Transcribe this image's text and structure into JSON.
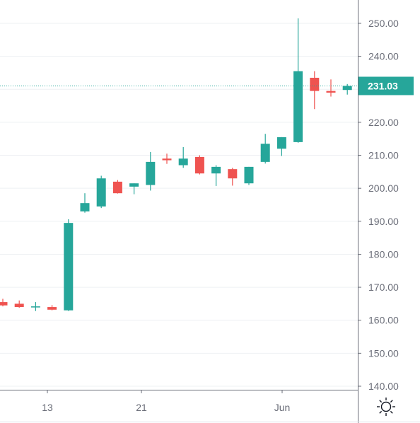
{
  "colors": {
    "up": "#26a69a",
    "down": "#ef5350",
    "last_price": "#26a69a",
    "axis_line": "#6a6d78",
    "axis_text": "#6a6d78",
    "grid": "#eef0f3",
    "background": "#ffffff"
  },
  "settings_icon": "sun-settings-icon",
  "chart_data": {
    "type": "candlestick",
    "title": "",
    "xlabel": "",
    "ylabel": "",
    "ylim": [
      138.5,
      257
    ],
    "grid": true,
    "y_ticks": [
      "250.00",
      "240.00",
      "230.00",
      "220.00",
      "210.00",
      "200.00",
      "190.00",
      "180.00",
      "170.00",
      "160.00",
      "150.00",
      "140.00"
    ],
    "x_ticks": [
      "13",
      "21",
      "Jun"
    ],
    "last_price": 231.03,
    "last_price_label": "231.03",
    "candles": [
      {
        "o": 165.5,
        "h": 166.5,
        "l": 164.2,
        "c": 164.5
      },
      {
        "o": 165.0,
        "h": 166.0,
        "l": 163.8,
        "c": 164.0
      },
      {
        "o": 164.0,
        "h": 165.5,
        "l": 162.8,
        "c": 164.2
      },
      {
        "o": 164.0,
        "h": 164.6,
        "l": 163.0,
        "c": 163.2
      },
      {
        "o": 163.0,
        "h": 190.6,
        "l": 162.8,
        "c": 189.5
      },
      {
        "o": 193.0,
        "h": 198.5,
        "l": 192.6,
        "c": 195.5
      },
      {
        "o": 194.5,
        "h": 203.8,
        "l": 194.0,
        "c": 203.0
      },
      {
        "o": 202.0,
        "h": 202.5,
        "l": 198.4,
        "c": 198.5
      },
      {
        "o": 200.5,
        "h": 201.5,
        "l": 198.2,
        "c": 201.5
      },
      {
        "o": 201.0,
        "h": 211.0,
        "l": 199.3,
        "c": 208.0
      },
      {
        "o": 209.0,
        "h": 210.5,
        "l": 207.4,
        "c": 208.5
      },
      {
        "o": 207.0,
        "h": 212.5,
        "l": 206.2,
        "c": 209.0
      },
      {
        "o": 209.5,
        "h": 210.0,
        "l": 204.2,
        "c": 204.5
      },
      {
        "o": 204.5,
        "h": 207.0,
        "l": 200.7,
        "c": 206.5
      },
      {
        "o": 205.8,
        "h": 206.2,
        "l": 200.8,
        "c": 203.0
      },
      {
        "o": 201.5,
        "h": 206.5,
        "l": 201.0,
        "c": 206.5
      },
      {
        "o": 208.0,
        "h": 216.5,
        "l": 207.5,
        "c": 213.5
      },
      {
        "o": 212.0,
        "h": 215.5,
        "l": 209.8,
        "c": 215.5
      },
      {
        "o": 214.0,
        "h": 251.5,
        "l": 213.8,
        "c": 235.5
      },
      {
        "o": 233.5,
        "h": 235.5,
        "l": 224.0,
        "c": 229.5
      },
      {
        "o": 229.5,
        "h": 233.0,
        "l": 227.8,
        "c": 229.0
      },
      {
        "o": 229.8,
        "h": 231.6,
        "l": 228.4,
        "c": 231.03
      }
    ]
  }
}
